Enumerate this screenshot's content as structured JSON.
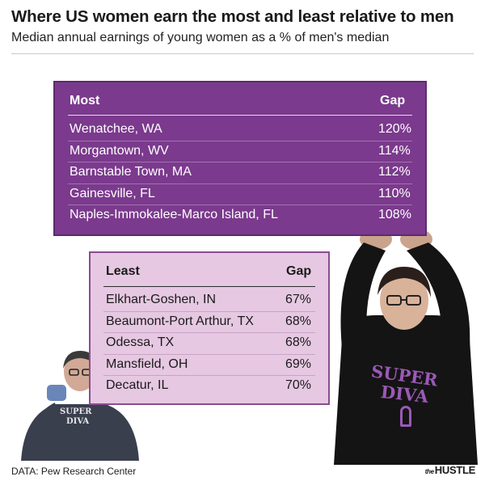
{
  "header": {
    "title": "Where US women earn the most and least relative to men",
    "subtitle": "Median annual earnings of young women as a % of men's median"
  },
  "chart_data": [
    {
      "type": "table",
      "title": "",
      "columns": [
        "Most",
        "Gap"
      ],
      "rows": [
        [
          "Wenatchee, WA",
          "120%"
        ],
        [
          "Morgantown, WV",
          "114%"
        ],
        [
          "Barnstable Town, MA",
          "112%"
        ],
        [
          "Gainesville, FL",
          "110%"
        ],
        [
          "Naples-Immokalee-Marco Island, FL",
          "108%"
        ]
      ],
      "values": [
        120,
        114,
        112,
        110,
        108
      ],
      "unit": "%"
    },
    {
      "type": "table",
      "title": "",
      "columns": [
        "Least",
        "Gap"
      ],
      "rows": [
        [
          "Elkhart-Goshen, IN",
          "67%"
        ],
        [
          "Beaumont-Port Arthur, TX",
          "68%"
        ],
        [
          "Odessa, TX",
          "68%"
        ],
        [
          "Mansfield, OH",
          "69%"
        ],
        [
          "Decatur, IL",
          "70%"
        ]
      ],
      "values": [
        67,
        68,
        68,
        69,
        70
      ],
      "unit": "%"
    }
  ],
  "illustrations": {
    "left_shirt_text": [
      "SUPER",
      "DIVA"
    ],
    "right_shirt_text": [
      "SUPER",
      "DIVA"
    ]
  },
  "footer": {
    "source": "DATA: Pew Research Center",
    "brand_the": "the",
    "brand_name": "HUSTLE"
  },
  "colors": {
    "most_panel": "#7b3a8d",
    "least_panel": "#e6c8e2",
    "shirt_text": "#9b59b6"
  }
}
